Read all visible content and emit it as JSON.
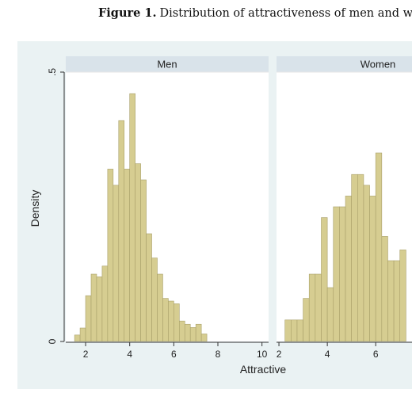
{
  "caption": {
    "label": "Figure 1.",
    "text": "Distribution of attractiveness of men and women"
  },
  "colors": {
    "plot_region_bg": "#eaf2f3",
    "strip_bg": "#d9e3ea",
    "bar_fill": "#d6cd91",
    "bar_stroke": "#a9a06a"
  },
  "chart_data": {
    "type": "bar",
    "subtype": "histogram",
    "layout": "faceted by sex (2 panels, shared axes)",
    "xlabel": "Attractive",
    "ylabel": "Density",
    "ylim": [
      0,
      0.5
    ],
    "y_tick_labels": [
      "0",
      ".5"
    ],
    "x_ticks": [
      2,
      4,
      6,
      8,
      10
    ],
    "bin_width": 0.25,
    "grid": true,
    "panels": [
      {
        "name": "Men",
        "xlim": [
          1.1,
          10.3
        ],
        "bin_starts": [
          1.5,
          1.75,
          2.0,
          2.25,
          2.5,
          2.75,
          3.0,
          3.25,
          3.5,
          3.75,
          4.0,
          4.25,
          4.5,
          4.75,
          5.0,
          5.25,
          5.5,
          5.75,
          6.0,
          6.25,
          6.5,
          6.75,
          7.0,
          7.25
        ],
        "values": [
          0.012,
          0.025,
          0.085,
          0.125,
          0.12,
          0.14,
          0.32,
          0.29,
          0.41,
          0.32,
          0.46,
          0.33,
          0.3,
          0.2,
          0.155,
          0.125,
          0.08,
          0.075,
          0.07,
          0.038,
          0.032,
          0.026,
          0.032,
          0.014
        ]
      },
      {
        "name": "Women",
        "xlim": [
          1.9,
          7.5
        ],
        "bin_starts": [
          2.25,
          2.5,
          2.75,
          3.0,
          3.25,
          3.5,
          3.75,
          4.0,
          4.25,
          4.5,
          4.75,
          5.0,
          5.25,
          5.5,
          5.75,
          6.0,
          6.25,
          6.5,
          6.75,
          7.0
        ],
        "values": [
          0.04,
          0.04,
          0.04,
          0.08,
          0.125,
          0.125,
          0.23,
          0.1,
          0.25,
          0.25,
          0.27,
          0.31,
          0.31,
          0.29,
          0.27,
          0.35,
          0.195,
          0.15,
          0.15,
          0.17
        ]
      }
    ]
  }
}
